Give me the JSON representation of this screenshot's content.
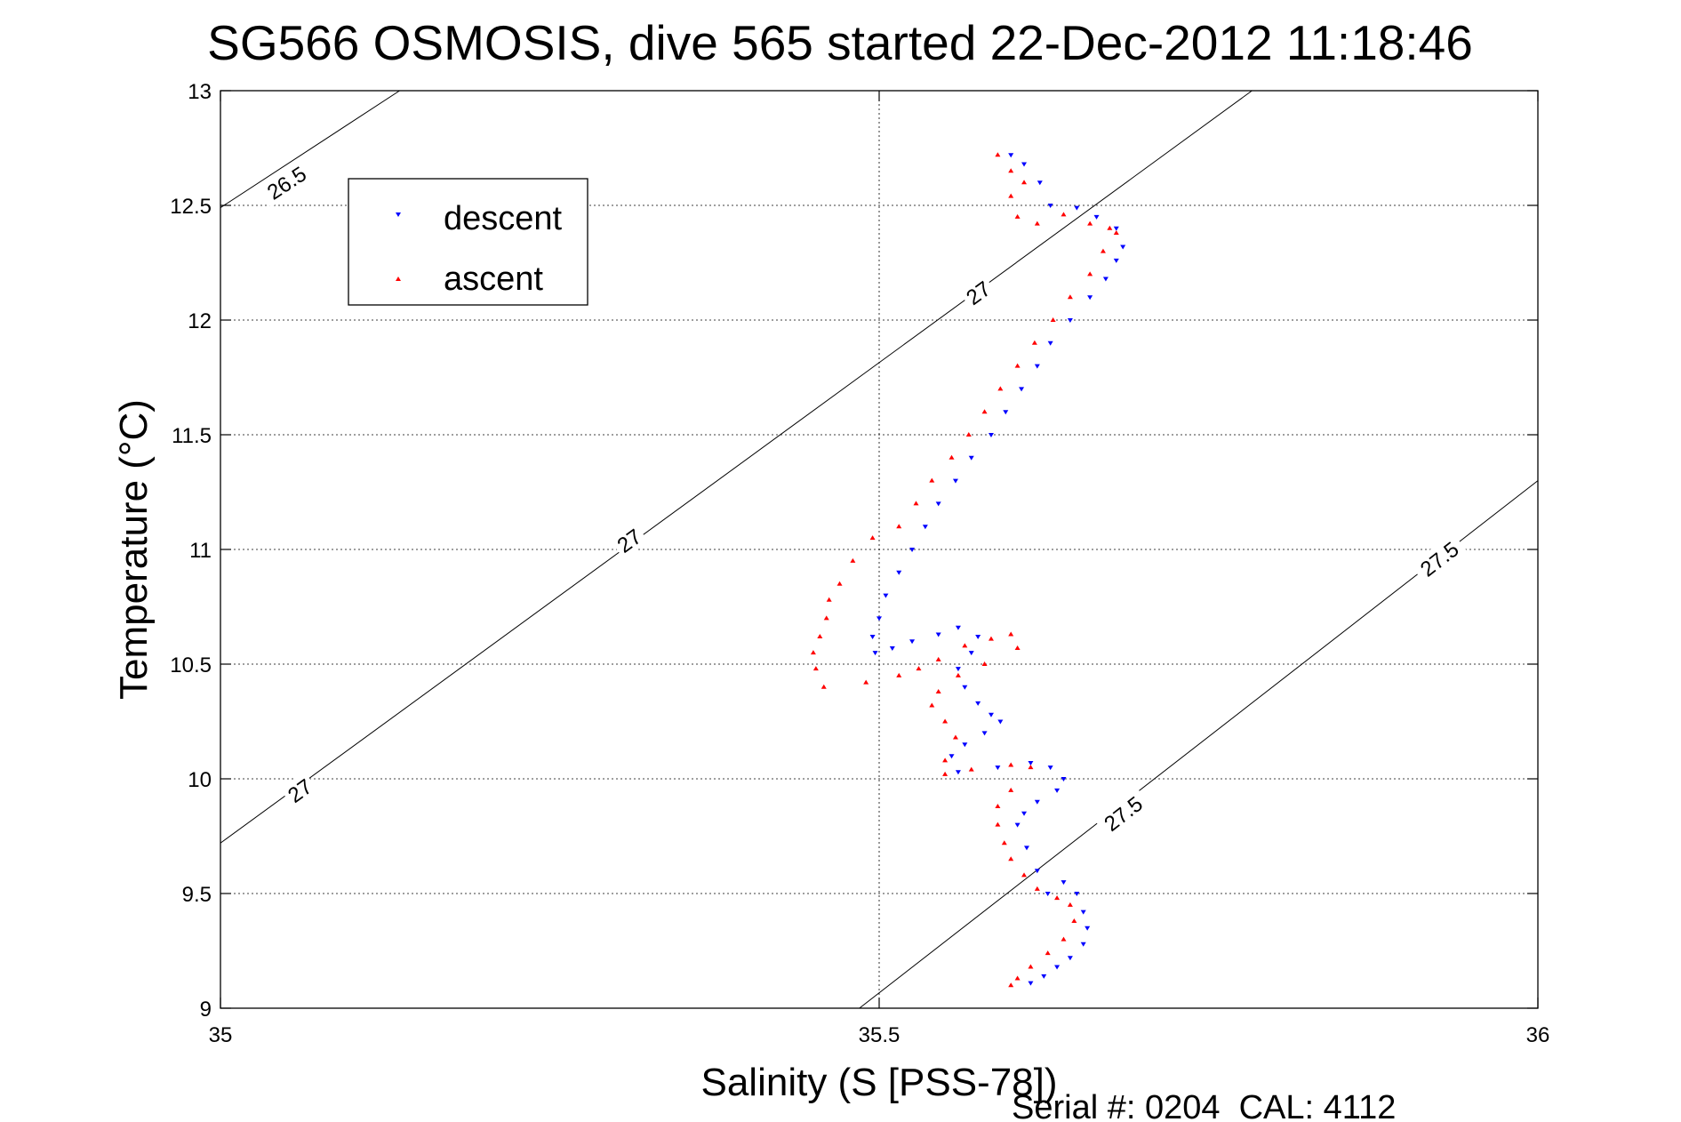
{
  "chart_data": {
    "type": "scatter",
    "title": "SG566 OSMOSIS, dive 565 started 22-Dec-2012 11:18:46",
    "xlabel": "Salinity (S [PSS-78])",
    "ylabel": "Temperature (°C)",
    "footer": "Serial #: 0204  CAL: 4112",
    "xlim": [
      35,
      36
    ],
    "ylim": [
      9,
      13
    ],
    "xticks": [
      35,
      35.5,
      36
    ],
    "xtick_labels": [
      "35",
      "35.5",
      "36"
    ],
    "yticks": [
      9,
      9.5,
      10,
      10.5,
      11,
      11.5,
      12,
      12.5,
      13
    ],
    "ytick_labels": [
      "9",
      "9.5",
      "10",
      "10.5",
      "11",
      "11.5",
      "12",
      "12.5",
      "13"
    ],
    "grid": true,
    "legend": {
      "position": "top-left",
      "entries": [
        "descent",
        "ascent"
      ]
    },
    "density_contours": [
      {
        "label": "26.5",
        "points": [
          [
            35.0,
            12.49
          ],
          [
            35.136,
            13.0
          ]
        ],
        "label_at": [
          35.05,
          12.6
        ]
      },
      {
        "label": "27",
        "points": [
          [
            35.0,
            9.72
          ],
          [
            35.783,
            13.0
          ]
        ],
        "label_at": [
          35.06,
          9.95
        ]
      },
      {
        "label": "27",
        "points": [
          [
            35.0,
            9.72
          ],
          [
            35.783,
            13.0
          ]
        ],
        "label_at": [
          35.31,
          11.04
        ]
      },
      {
        "label": "27",
        "points": [
          [
            35.0,
            9.72
          ],
          [
            35.783,
            13.0
          ]
        ],
        "label_at": [
          35.575,
          12.12
        ]
      },
      {
        "label": "27.5",
        "points": [
          [
            35.485,
            9.0
          ],
          [
            36.0,
            11.3
          ]
        ],
        "label_at": [
          35.685,
          9.85
        ]
      },
      {
        "label": "27.5",
        "points": [
          [
            35.485,
            9.0
          ],
          [
            36.0,
            11.3
          ]
        ],
        "label_at": [
          35.925,
          10.96
        ]
      }
    ],
    "series": [
      {
        "name": "descent",
        "color": "#0000ff",
        "marker": "triangle-down",
        "points": [
          [
            35.6,
            12.72
          ],
          [
            35.61,
            12.68
          ],
          [
            35.622,
            12.6
          ],
          [
            35.63,
            12.5
          ],
          [
            35.65,
            12.49
          ],
          [
            35.665,
            12.45
          ],
          [
            35.68,
            12.4
          ],
          [
            35.685,
            12.32
          ],
          [
            35.68,
            12.26
          ],
          [
            35.672,
            12.18
          ],
          [
            35.66,
            12.1
          ],
          [
            35.645,
            12.0
          ],
          [
            35.63,
            11.9
          ],
          [
            35.62,
            11.8
          ],
          [
            35.608,
            11.7
          ],
          [
            35.596,
            11.6
          ],
          [
            35.585,
            11.5
          ],
          [
            35.57,
            11.4
          ],
          [
            35.558,
            11.3
          ],
          [
            35.545,
            11.2
          ],
          [
            35.535,
            11.1
          ],
          [
            35.525,
            11.0
          ],
          [
            35.515,
            10.9
          ],
          [
            35.505,
            10.8
          ],
          [
            35.5,
            10.7
          ],
          [
            35.495,
            10.62
          ],
          [
            35.497,
            10.55
          ],
          [
            35.51,
            10.57
          ],
          [
            35.525,
            10.6
          ],
          [
            35.545,
            10.63
          ],
          [
            35.56,
            10.66
          ],
          [
            35.575,
            10.62
          ],
          [
            35.57,
            10.55
          ],
          [
            35.56,
            10.48
          ],
          [
            35.565,
            10.4
          ],
          [
            35.575,
            10.33
          ],
          [
            35.585,
            10.28
          ],
          [
            35.592,
            10.25
          ],
          [
            35.58,
            10.2
          ],
          [
            35.565,
            10.15
          ],
          [
            35.555,
            10.1
          ],
          [
            35.56,
            10.03
          ],
          [
            35.59,
            10.05
          ],
          [
            35.615,
            10.07
          ],
          [
            35.63,
            10.05
          ],
          [
            35.64,
            10.0
          ],
          [
            35.635,
            9.95
          ],
          [
            35.62,
            9.9
          ],
          [
            35.61,
            9.85
          ],
          [
            35.605,
            9.8
          ],
          [
            35.612,
            9.7
          ],
          [
            35.62,
            9.6
          ],
          [
            35.628,
            9.5
          ],
          [
            35.64,
            9.55
          ],
          [
            35.65,
            9.5
          ],
          [
            35.655,
            9.42
          ],
          [
            35.658,
            9.35
          ],
          [
            35.655,
            9.28
          ],
          [
            35.645,
            9.22
          ],
          [
            35.635,
            9.18
          ],
          [
            35.625,
            9.14
          ],
          [
            35.615,
            9.11
          ]
        ]
      },
      {
        "name": "ascent",
        "color": "#ff0000",
        "marker": "triangle-up",
        "points": [
          [
            35.59,
            12.72
          ],
          [
            35.6,
            12.65
          ],
          [
            35.61,
            12.6
          ],
          [
            35.6,
            12.54
          ],
          [
            35.605,
            12.45
          ],
          [
            35.62,
            12.42
          ],
          [
            35.64,
            12.46
          ],
          [
            35.66,
            12.42
          ],
          [
            35.675,
            12.4
          ],
          [
            35.68,
            12.38
          ],
          [
            35.67,
            12.3
          ],
          [
            35.66,
            12.2
          ],
          [
            35.645,
            12.1
          ],
          [
            35.632,
            12.0
          ],
          [
            35.618,
            11.9
          ],
          [
            35.605,
            11.8
          ],
          [
            35.592,
            11.7
          ],
          [
            35.58,
            11.6
          ],
          [
            35.568,
            11.5
          ],
          [
            35.555,
            11.4
          ],
          [
            35.54,
            11.3
          ],
          [
            35.528,
            11.2
          ],
          [
            35.515,
            11.1
          ],
          [
            35.495,
            11.05
          ],
          [
            35.48,
            10.95
          ],
          [
            35.47,
            10.85
          ],
          [
            35.462,
            10.78
          ],
          [
            35.46,
            10.7
          ],
          [
            35.455,
            10.62
          ],
          [
            35.45,
            10.55
          ],
          [
            35.452,
            10.48
          ],
          [
            35.458,
            10.4
          ],
          [
            35.49,
            10.42
          ],
          [
            35.515,
            10.45
          ],
          [
            35.53,
            10.48
          ],
          [
            35.545,
            10.52
          ],
          [
            35.565,
            10.58
          ],
          [
            35.585,
            10.61
          ],
          [
            35.6,
            10.63
          ],
          [
            35.605,
            10.57
          ],
          [
            35.58,
            10.5
          ],
          [
            35.56,
            10.45
          ],
          [
            35.545,
            10.38
          ],
          [
            35.54,
            10.32
          ],
          [
            35.55,
            10.25
          ],
          [
            35.558,
            10.18
          ],
          [
            35.55,
            10.08
          ],
          [
            35.55,
            10.02
          ],
          [
            35.57,
            10.04
          ],
          [
            35.6,
            10.06
          ],
          [
            35.615,
            10.05
          ],
          [
            35.6,
            9.95
          ],
          [
            35.59,
            9.88
          ],
          [
            35.59,
            9.8
          ],
          [
            35.595,
            9.72
          ],
          [
            35.6,
            9.65
          ],
          [
            35.61,
            9.58
          ],
          [
            35.62,
            9.52
          ],
          [
            35.635,
            9.48
          ],
          [
            35.645,
            9.45
          ],
          [
            35.648,
            9.38
          ],
          [
            35.64,
            9.3
          ],
          [
            35.628,
            9.24
          ],
          [
            35.615,
            9.18
          ],
          [
            35.605,
            9.13
          ],
          [
            35.6,
            9.1
          ]
        ]
      }
    ]
  }
}
